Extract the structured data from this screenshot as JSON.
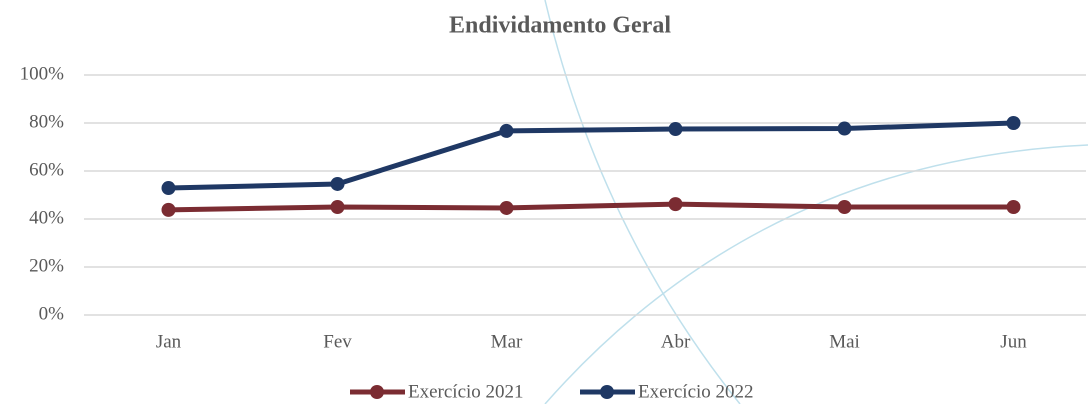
{
  "chart_data": {
    "type": "line",
    "title": "Endividamento Geral",
    "categories": [
      "Jan",
      "Fev",
      "Mar",
      "Abr",
      "Mai",
      "Jun"
    ],
    "series": [
      {
        "name": "Exercício 2021",
        "color": "#7b2c32",
        "values": [
          43.8,
          45,
          44.6,
          46.2,
          45,
          45
        ]
      },
      {
        "name": "Exercício 2022",
        "color": "#1f3864",
        "values": [
          52.9,
          54.6,
          76.7,
          77.5,
          77.7,
          80
        ]
      }
    ],
    "ylim": [
      0,
      100
    ],
    "yticks": [
      {
        "value": 0,
        "label": "0%"
      },
      {
        "value": 20,
        "label": "20%"
      },
      {
        "value": 40,
        "label": "40%"
      },
      {
        "value": 60,
        "label": "60%"
      },
      {
        "value": 80,
        "label": "80%"
      },
      {
        "value": 100,
        "label": "100%"
      }
    ],
    "grid": true,
    "legend": "bottom"
  }
}
